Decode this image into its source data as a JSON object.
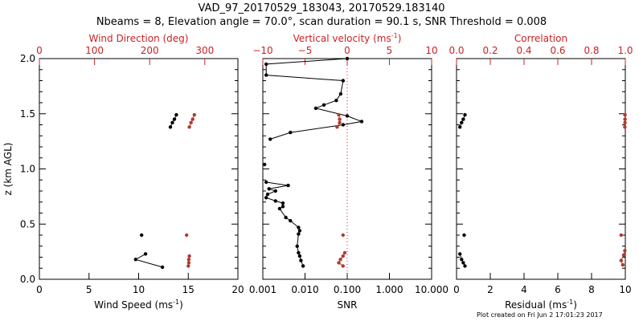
{
  "figure": {
    "title_line1": "VAD_97_20170529_183043, 20170529.183140",
    "title_line2": "Nbeams = 8, Elevation angle = 70.0°, scan duration = 90.1 s, SNR Threshold = 0.008",
    "footer": "Plot created on Fri Jun  2 17:01:23 2017"
  },
  "colors": {
    "axis": "#000000",
    "secondary": "#cc2222",
    "black_series": "#000000",
    "red_series": "#b03a2e"
  },
  "chart_data": [
    {
      "type": "scatter",
      "ylabel": "z (km AGL)",
      "ylim": [
        0,
        2
      ],
      "yticks": [
        "0.0",
        "0.5",
        "1.0",
        "1.5",
        "2.0"
      ],
      "bottom_axis": {
        "label": "Wind Speed (ms",
        "label_sup": "-1",
        "label_end": ")",
        "range": [
          0,
          20
        ],
        "ticks": [
          "0",
          "5",
          "10",
          "15",
          "20"
        ]
      },
      "top_axis": {
        "label": "Wind Direction (deg)",
        "range": [
          0,
          360
        ],
        "ticks": [
          "0",
          "100",
          "200",
          "300"
        ],
        "color": "red"
      },
      "series": [
        {
          "axis": "bottom",
          "color": "black",
          "segments": [
            {
              "x": [
                13.2,
                13.4,
                13.6,
                13.8
              ],
              "y": [
                1.38,
                1.42,
                1.45,
                1.49
              ]
            },
            {
              "x": [
                10.3
              ],
              "y": [
                0.4
              ]
            },
            {
              "x": [
                12.4,
                9.7,
                10.7
              ],
              "y": [
                0.11,
                0.18,
                0.23
              ]
            }
          ]
        },
        {
          "axis": "top",
          "color": "red",
          "segments": [
            {
              "x": [
                272,
                275,
                278,
                281
              ],
              "y": [
                1.38,
                1.42,
                1.45,
                1.49
              ]
            },
            {
              "x": [
                267
              ],
              "y": [
                0.4
              ]
            },
            {
              "x": [
                270,
                271,
                271,
                272
              ],
              "y": [
                0.12,
                0.15,
                0.18,
                0.21
              ]
            }
          ]
        }
      ]
    },
    {
      "type": "line",
      "ylim": [
        0,
        2
      ],
      "bottom_axis": {
        "label": "SNR",
        "scale": "log",
        "range": [
          0.001,
          10
        ],
        "ticks": [
          "0.001",
          "0.010",
          "0.100",
          "1.000",
          "10.000"
        ]
      },
      "top_axis": {
        "label": "Vertical velocity (ms",
        "label_sup": "-1",
        "label_end": ")",
        "range": [
          -10,
          10
        ],
        "ticks": [
          "−10",
          "−5",
          "0",
          "5",
          "10"
        ],
        "color": "red"
      },
      "reference_line": {
        "axis": "bottom",
        "x": 0.1,
        "style": "dotted",
        "color": "red"
      },
      "series": [
        {
          "axis": "bottom",
          "color": "black",
          "segments": [
            {
              "x": [
                0.1,
                0.0012,
                0.0012,
                0.08,
                0.07,
                0.055,
                0.028,
                0.018,
                0.1,
                0.22,
                0.08,
                0.0045,
                0.0015
              ],
              "y": [
                2.0,
                1.95,
                1.85,
                1.8,
                1.68,
                1.62,
                1.58,
                1.55,
                1.48,
                1.43,
                1.4,
                1.33,
                1.27
              ]
            },
            {
              "x": [
                0.0011
              ],
              "y": [
                1.04
              ]
            },
            {
              "x": [
                0.0012,
                0.004,
                0.0014,
                0.002,
                0.0013,
                0.0012,
                0.002,
                0.003,
                0.003,
                0.0025,
                0.0035,
                0.0045,
                0.007,
                0.0075,
                0.007,
                0.0065,
                0.007,
                0.0075,
                0.008,
                0.009
              ],
              "y": [
                0.88,
                0.85,
                0.82,
                0.8,
                0.77,
                0.74,
                0.71,
                0.69,
                0.66,
                0.64,
                0.56,
                0.53,
                0.47,
                0.44,
                0.41,
                0.3,
                0.24,
                0.21,
                0.17,
                0.12
              ]
            }
          ]
        },
        {
          "axis": "top",
          "color": "red",
          "segments": [
            {
              "x": [
                -1.2,
                -0.9,
                -0.9,
                -1.0
              ],
              "y": [
                1.38,
                1.42,
                1.45,
                1.49
              ]
            },
            {
              "x": [
                -0.5
              ],
              "y": [
                0.4
              ]
            },
            {
              "x": [
                -0.5,
                -1.0,
                -0.8,
                -0.5,
                -0.3
              ],
              "y": [
                0.12,
                0.15,
                0.18,
                0.21,
                0.24
              ]
            }
          ]
        }
      ]
    },
    {
      "type": "scatter",
      "ylim": [
        0,
        2
      ],
      "bottom_axis": {
        "label": "Residual (ms",
        "label_sup": "-1",
        "label_end": ")",
        "range": [
          0,
          10
        ],
        "ticks": [
          "0",
          "2",
          "4",
          "6",
          "8",
          "10"
        ]
      },
      "top_axis": {
        "label": "Correlation",
        "range": [
          0,
          1
        ],
        "ticks": [
          "0.0",
          "0.2",
          "0.4",
          "0.6",
          "0.8",
          "1.0"
        ],
        "color": "red"
      },
      "series": [
        {
          "axis": "bottom",
          "color": "black",
          "segments": [
            {
              "x": [
                0.2,
                0.3,
                0.4,
                0.5
              ],
              "y": [
                1.38,
                1.42,
                1.45,
                1.49
              ]
            },
            {
              "x": [
                0.45
              ],
              "y": [
                0.4
              ]
            },
            {
              "x": [
                0.5,
                0.4,
                0.3,
                0.2
              ],
              "y": [
                0.12,
                0.15,
                0.18,
                0.23
              ]
            }
          ]
        },
        {
          "axis": "top",
          "color": "red",
          "segments": [
            {
              "x": [
                0.997,
                0.998,
                0.998,
                0.998
              ],
              "y": [
                1.38,
                1.42,
                1.45,
                1.49
              ]
            },
            {
              "x": [
                0.975
              ],
              "y": [
                0.4
              ]
            },
            {
              "x": [
                0.985,
                0.975,
                0.99,
                0.997
              ],
              "y": [
                0.13,
                0.17,
                0.22,
                0.26
              ]
            }
          ]
        }
      ]
    }
  ]
}
